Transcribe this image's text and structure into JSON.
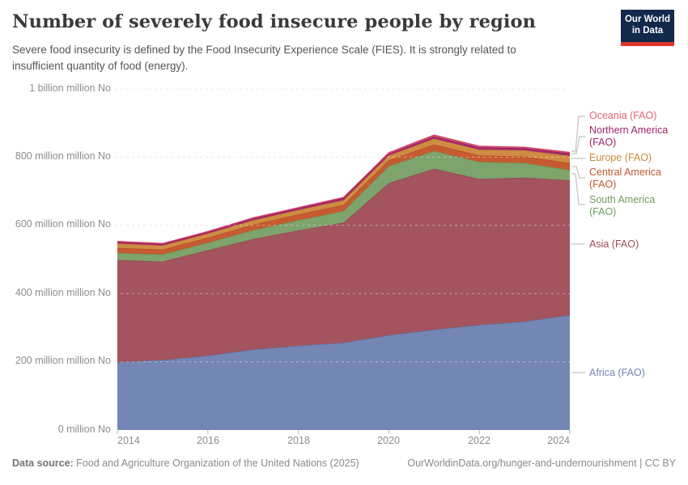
{
  "header": {
    "title": "Number of severely food insecure people by region",
    "subtitle": "Severe food insecurity is defined by the Food Insecurity Experience Scale (FIES). It is strongly related to insufficient quantity of food (energy).",
    "logo": {
      "line1": "Our World",
      "line2": "in Data",
      "bg_color": "#12294b",
      "stripe_color": "#e0352b"
    }
  },
  "chart_data": {
    "type": "area",
    "stacked": true,
    "title": "Number of severely food insecure people by region",
    "xlabel": "",
    "ylabel": "",
    "unit": "million No",
    "xlim": [
      2014,
      2024
    ],
    "ylim": [
      0,
      1000
    ],
    "grid": "dashed-horizontal",
    "legend_position": "right",
    "x": [
      2014,
      2015,
      2016,
      2017,
      2018,
      2019,
      2020,
      2021,
      2022,
      2023,
      2024
    ],
    "series": [
      {
        "name": "africa",
        "label": "Africa (FAO)",
        "color": "#7487b4",
        "stroke": "#5c73a6",
        "text_color": "#6f86b5",
        "values": [
          199,
          205,
          218,
          236,
          247,
          256,
          278,
          294,
          308,
          318,
          337
        ]
      },
      {
        "name": "asia",
        "label": "Asia (FAO)",
        "color": "#a3545e",
        "stroke": "#8f4450",
        "text_color": "#9e4b55",
        "values": [
          299,
          289,
          309,
          324,
          338,
          352,
          446,
          472,
          428,
          422,
          395
        ]
      },
      {
        "name": "south_america",
        "label": "South America (FAO)",
        "color": "#7ea36c",
        "stroke": "#69964f",
        "text_color": "#6e9d5d",
        "values": [
          21,
          21,
          22,
          26,
          30,
          34,
          50,
          52,
          50,
          43,
          30
        ]
      },
      {
        "name": "central_america",
        "label": "Central America (FAO)",
        "color": "#c65b31",
        "stroke": "#b34a21",
        "text_color": "#c2572f",
        "values": [
          15,
          14,
          15,
          16,
          17,
          18,
          17,
          19,
          19,
          19,
          21
        ]
      },
      {
        "name": "europe",
        "label": "Europe (FAO)",
        "color": "#cf8c42",
        "stroke": "#c17d2c",
        "text_color": "#c98939",
        "values": [
          13,
          12,
          12,
          13,
          13,
          14,
          14,
          17,
          17,
          18,
          21
        ]
      },
      {
        "name": "northern_america",
        "label": "Northern America (FAO)",
        "color": "#a52c6e",
        "stroke": "#8f1a5c",
        "text_color": "#a0246b",
        "values": [
          4,
          4,
          4,
          5,
          5,
          6,
          5,
          7,
          7,
          6,
          7
        ]
      },
      {
        "name": "oceania",
        "label": "Oceania (FAO)",
        "color": "#dd5f72",
        "stroke": "#d23d60",
        "text_color": "#e16272",
        "values": [
          2,
          2,
          2,
          2,
          2,
          2,
          3,
          4,
          3,
          3,
          3
        ]
      }
    ],
    "y_ticks": [
      {
        "value": 0,
        "label": "0 million No"
      },
      {
        "value": 200,
        "label": "200 million million No"
      },
      {
        "value": 400,
        "label": "400 million million No"
      },
      {
        "value": 600,
        "label": "600 million million No"
      },
      {
        "value": 800,
        "label": "800 million million No"
      },
      {
        "value": 1000,
        "label": "1 billion million No"
      }
    ],
    "x_ticks": [
      "2014",
      "2016",
      "2018",
      "2020",
      "2022",
      "2024"
    ]
  },
  "footer": {
    "datasource_label": "Data source:",
    "datasource_text": " Food and Agriculture Organization of the United Nations (2025)",
    "link_text": "OurWorldinData.org/hunger-and-undernourishment | CC BY"
  }
}
